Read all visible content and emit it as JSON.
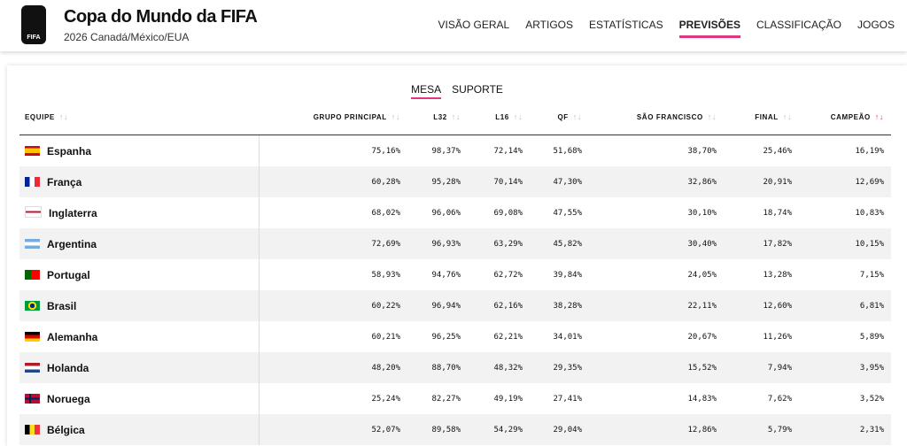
{
  "header": {
    "logo": "FIFA",
    "title": "Copa do Mundo da FIFA",
    "subtitle": "2026 Canadá/México/EUA",
    "nav": [
      "VISÃO GERAL",
      "ARTIGOS",
      "ESTATÍSTICAS",
      "PREVISÕES",
      "CLASSIFICAÇÃO",
      "JOGOS"
    ]
  },
  "tabs": [
    "MESA",
    "SUPORTE"
  ],
  "table": {
    "columns": [
      "EQUIPE",
      "GRUPO PRINCIPAL",
      "L32",
      "L16",
      "QF",
      "SÃO FRANCISCO",
      "FINAL",
      "CAMPEÃO"
    ],
    "rows": [
      [
        "Espanha",
        "75,16%",
        "98,37%",
        "72,14%",
        "51,68%",
        "38,70%",
        "25,46%",
        "16,19%"
      ],
      [
        "França",
        "60,28%",
        "95,28%",
        "70,14%",
        "47,30%",
        "32,86%",
        "20,91%",
        "12,69%"
      ],
      [
        "Inglaterra",
        "68,02%",
        "96,06%",
        "69,08%",
        "47,55%",
        "30,10%",
        "18,74%",
        "10,83%"
      ],
      [
        "Argentina",
        "72,69%",
        "96,93%",
        "63,29%",
        "45,82%",
        "30,40%",
        "17,82%",
        "10,15%"
      ],
      [
        "Portugal",
        "58,93%",
        "94,76%",
        "62,72%",
        "39,84%",
        "24,05%",
        "13,28%",
        "7,15%"
      ],
      [
        "Brasil",
        "60,22%",
        "96,94%",
        "62,16%",
        "38,28%",
        "22,11%",
        "12,60%",
        "6,81%"
      ],
      [
        "Alemanha",
        "60,21%",
        "96,25%",
        "62,21%",
        "34,01%",
        "20,67%",
        "11,26%",
        "5,89%"
      ],
      [
        "Holanda",
        "48,20%",
        "88,70%",
        "48,32%",
        "29,35%",
        "15,52%",
        "7,94%",
        "3,95%"
      ],
      [
        "Noruega",
        "25,24%",
        "82,27%",
        "49,19%",
        "27,41%",
        "14,83%",
        "7,62%",
        "3,52%"
      ],
      [
        "Bélgica",
        "52,07%",
        "89,58%",
        "54,29%",
        "29,04%",
        "12,86%",
        "5,79%",
        "2,31%"
      ]
    ]
  }
}
